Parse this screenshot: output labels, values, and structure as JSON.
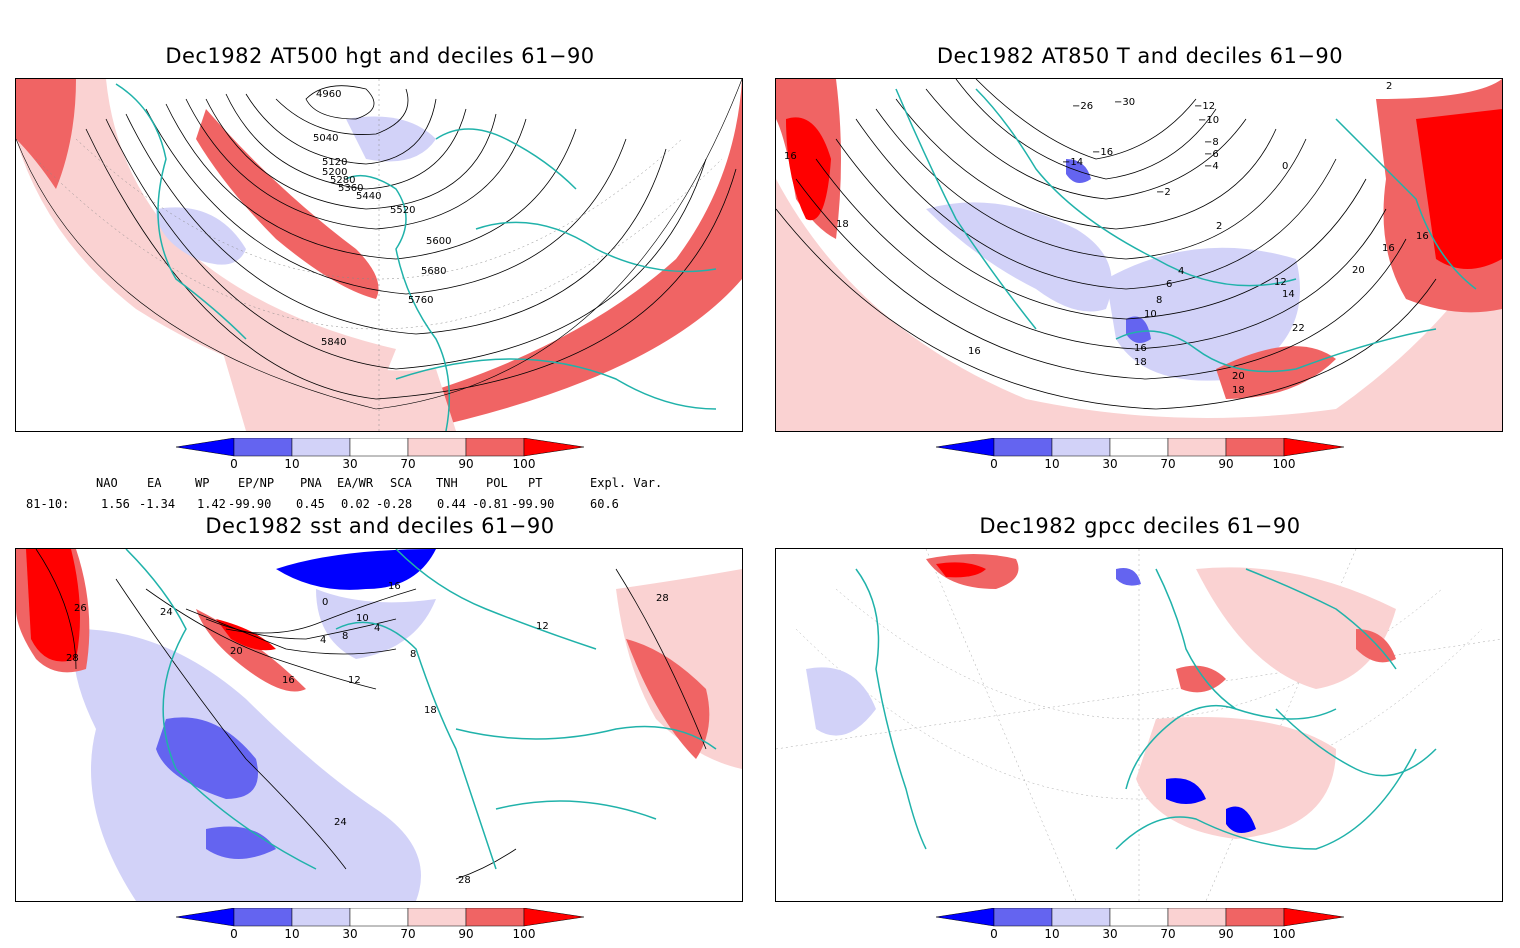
{
  "panels": [
    {
      "id": "z500",
      "title": "Dec1982 AT500 hgt and deciles 61−90",
      "contour_labels": [
        "4960",
        "5040",
        "5120",
        "5200",
        "5280",
        "5360",
        "5440",
        "5520",
        "5600",
        "5680",
        "5760",
        "5840"
      ]
    },
    {
      "id": "t850",
      "title": "Dec1982 AT850 T and deciles 61−90",
      "contour_labels": [
        "−26",
        "−30",
        "−12",
        "−10",
        "−8",
        "−6",
        "−4",
        "−14",
        "−16",
        "−2",
        "0",
        "2",
        "4",
        "6",
        "8",
        "10",
        "12",
        "14",
        "16",
        "18",
        "20",
        "22",
        "2",
        "16",
        "16",
        "16",
        "18",
        "20",
        "18",
        "16"
      ]
    },
    {
      "id": "sst",
      "title": "Dec1982 sst and deciles 61−90",
      "contour_labels": [
        "26",
        "28",
        "24",
        "20",
        "16",
        "12",
        "8",
        "4",
        "0",
        "10",
        "4",
        "18",
        "24",
        "28",
        "28",
        "12",
        "16",
        "8"
      ]
    },
    {
      "id": "gpcc",
      "title": "Dec1982 gpcc deciles 61−90",
      "contour_labels": []
    }
  ],
  "colorbar": {
    "ticks": [
      "0",
      "10",
      "30",
      "70",
      "90",
      "100"
    ],
    "colors": {
      "low_extreme": "#0000ff",
      "low": "#6464f0",
      "low_light": "#d2d2f8",
      "neutral": "#ffffff",
      "high_light": "#fad2d2",
      "high": "#f06464",
      "high_extreme": "#ff0000"
    }
  },
  "indices": {
    "headers": [
      "NAO",
      "EA",
      "WP",
      "EP/NP",
      "PNA",
      "EA/WR",
      "SCA",
      "TNH",
      "POL",
      "PT",
      "Expl. Var."
    ],
    "row_label": "81-10:",
    "values": [
      "1.56",
      "-1.34",
      "1.42",
      "-99.90",
      "0.45",
      "0.02",
      "-0.28",
      "0.44",
      "-0.81",
      "-99.90",
      "60.6"
    ]
  },
  "colors": {
    "coast": "#20b2aa",
    "contour": "#000000",
    "grid": "#888888"
  }
}
